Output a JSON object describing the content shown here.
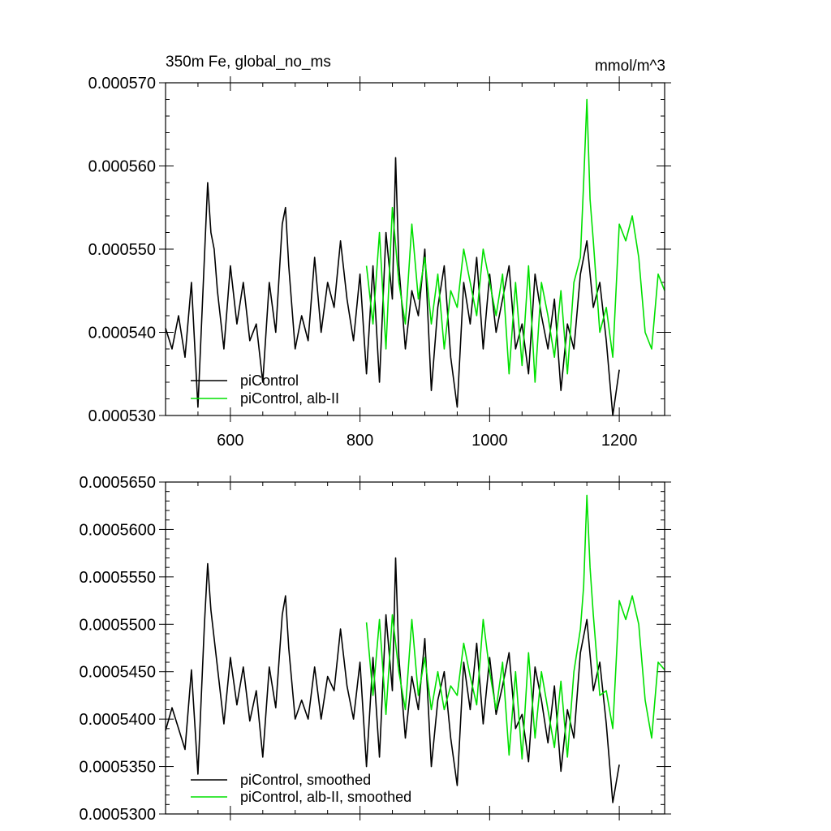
{
  "chart_data": [
    {
      "type": "line",
      "title": "350m Fe, global_no_ms",
      "units": "mmol/m^3",
      "xlabel": "",
      "ylabel": "",
      "xlim": [
        500,
        1270
      ],
      "ylim": [
        0.00053,
        0.00057
      ],
      "xticks": [
        600,
        800,
        1000,
        1200
      ],
      "xtick_labels": [
        "600",
        "800",
        "1000",
        "1200"
      ],
      "yticks": [
        0.00053,
        0.00054,
        0.00055,
        0.00056,
        0.00057
      ],
      "ytick_labels": [
        "0.000530",
        "0.000540",
        "0.000550",
        "0.000560",
        "0.000570"
      ],
      "legend": {
        "position": "bottom-left"
      },
      "series": [
        {
          "name": "piControl",
          "color": "#000000",
          "x": [
            500,
            510,
            520,
            530,
            540,
            550,
            560,
            565,
            570,
            575,
            580,
            590,
            600,
            610,
            620,
            630,
            640,
            650,
            660,
            670,
            680,
            685,
            690,
            700,
            710,
            720,
            730,
            740,
            750,
            760,
            770,
            780,
            790,
            800,
            810,
            820,
            830,
            840,
            850,
            855,
            860,
            870,
            880,
            890,
            900,
            910,
            920,
            930,
            940,
            950,
            960,
            970,
            980,
            990,
            1000,
            1010,
            1020,
            1030,
            1040,
            1050,
            1060,
            1070,
            1080,
            1090,
            1100,
            1110,
            1120,
            1130,
            1140,
            1150,
            1160,
            1170,
            1180,
            1190,
            1200
          ],
          "y": [
            0.0005405,
            0.000538,
            0.000542,
            0.000537,
            0.000546,
            0.000531,
            0.000549,
            0.000558,
            0.000552,
            0.00055,
            0.000545,
            0.000538,
            0.000548,
            0.000541,
            0.000546,
            0.000539,
            0.000541,
            0.000534,
            0.000546,
            0.00054,
            0.000553,
            0.000555,
            0.000548,
            0.000538,
            0.000542,
            0.000539,
            0.000549,
            0.00054,
            0.000546,
            0.000543,
            0.000551,
            0.000544,
            0.000539,
            0.000547,
            0.000535,
            0.000548,
            0.000534,
            0.000552,
            0.000544,
            0.000561,
            0.000548,
            0.000538,
            0.000545,
            0.000542,
            0.00055,
            0.000533,
            0.000543,
            0.000548,
            0.000537,
            0.000531,
            0.000546,
            0.000541,
            0.000549,
            0.000538,
            0.000547,
            0.00054,
            0.000544,
            0.000548,
            0.000538,
            0.000541,
            0.000535,
            0.000547,
            0.000542,
            0.000538,
            0.000544,
            0.000533,
            0.000541,
            0.000538,
            0.000547,
            0.000551,
            0.000543,
            0.000546,
            0.000539,
            0.00053,
            0.0005355
          ]
        },
        {
          "name": "piControl, alb-II",
          "color": "#00e000",
          "x": [
            810,
            820,
            830,
            840,
            850,
            860,
            870,
            880,
            890,
            900,
            910,
            920,
            930,
            940,
            950,
            960,
            970,
            980,
            990,
            1000,
            1010,
            1020,
            1030,
            1040,
            1050,
            1060,
            1070,
            1080,
            1090,
            1100,
            1110,
            1120,
            1130,
            1140,
            1145,
            1150,
            1155,
            1160,
            1170,
            1180,
            1190,
            1200,
            1210,
            1220,
            1230,
            1240,
            1250,
            1260,
            1270
          ],
          "y": [
            0.000548,
            0.000541,
            0.000552,
            0.000538,
            0.000555,
            0.000546,
            0.000541,
            0.000553,
            0.000544,
            0.000549,
            0.000541,
            0.000547,
            0.000538,
            0.000545,
            0.000543,
            0.00055,
            0.000546,
            0.000542,
            0.00055,
            0.000546,
            0.000542,
            0.000547,
            0.000535,
            0.000546,
            0.000536,
            0.000548,
            0.000534,
            0.000546,
            0.000542,
            0.000537,
            0.000545,
            0.000535,
            0.000546,
            0.000549,
            0.000558,
            0.000568,
            0.000556,
            0.000551,
            0.00054,
            0.000543,
            0.000537,
            0.000553,
            0.000551,
            0.000554,
            0.000549,
            0.00054,
            0.000538,
            0.000547,
            0.000545
          ]
        }
      ]
    },
    {
      "type": "line",
      "title": "",
      "xlabel": "",
      "ylabel": "",
      "xlim": [
        500,
        1270
      ],
      "ylim": [
        0.00053,
        0.000565
      ],
      "xticks": [
        600,
        800,
        1000,
        1200
      ],
      "yticks": [
        0.00053,
        0.000535,
        0.00054,
        0.000545,
        0.00055,
        0.000555,
        0.00056,
        0.000565
      ],
      "ytick_labels": [
        "0.0005300",
        "0.0005350",
        "0.0005400",
        "0.0005450",
        "0.0005500",
        "0.0005550",
        "0.0005600",
        "0.0005650"
      ],
      "legend": {
        "position": "bottom-left"
      },
      "series": [
        {
          "name": "piControl, smoothed",
          "color": "#000000",
          "x": [
            500,
            510,
            520,
            530,
            540,
            550,
            560,
            565,
            570,
            580,
            590,
            600,
            610,
            620,
            630,
            640,
            650,
            660,
            670,
            680,
            685,
            690,
            700,
            710,
            720,
            730,
            740,
            750,
            760,
            770,
            780,
            790,
            800,
            810,
            820,
            830,
            840,
            850,
            855,
            860,
            870,
            880,
            890,
            900,
            910,
            920,
            930,
            940,
            950,
            960,
            970,
            980,
            990,
            1000,
            1010,
            1020,
            1030,
            1040,
            1050,
            1060,
            1070,
            1080,
            1090,
            1100,
            1110,
            1120,
            1130,
            1140,
            1150,
            1160,
            1170,
            1180,
            1190,
            1200
          ],
          "y": [
            0.0005388,
            0.0005412,
            0.000539,
            0.0005368,
            0.0005452,
            0.0005342,
            0.00055,
            0.0005564,
            0.0005515,
            0.0005455,
            0.0005395,
            0.0005465,
            0.0005415,
            0.0005455,
            0.0005398,
            0.000543,
            0.000536,
            0.0005455,
            0.0005412,
            0.000551,
            0.000553,
            0.0005475,
            0.00054,
            0.000542,
            0.00054,
            0.0005455,
            0.00054,
            0.0005445,
            0.000543,
            0.0005495,
            0.0005435,
            0.00054,
            0.000546,
            0.000535,
            0.0005465,
            0.000536,
            0.000551,
            0.000543,
            0.000557,
            0.0005465,
            0.000538,
            0.0005445,
            0.000541,
            0.0005485,
            0.000535,
            0.000542,
            0.000545,
            0.000538,
            0.000533,
            0.000546,
            0.000541,
            0.000548,
            0.0005395,
            0.0005465,
            0.0005405,
            0.0005435,
            0.000547,
            0.000539,
            0.0005405,
            0.0005355,
            0.0005455,
            0.000542,
            0.0005375,
            0.0005435,
            0.0005345,
            0.000541,
            0.000538,
            0.000547,
            0.0005505,
            0.000543,
            0.000546,
            0.0005395,
            0.0005312,
            0.0005352
          ]
        },
        {
          "name": "piControl, alb-II, smoothed",
          "color": "#00e000",
          "x": [
            810,
            820,
            830,
            840,
            850,
            860,
            870,
            880,
            890,
            900,
            910,
            920,
            930,
            940,
            950,
            960,
            970,
            980,
            990,
            1000,
            1010,
            1020,
            1030,
            1040,
            1050,
            1060,
            1070,
            1080,
            1090,
            1100,
            1110,
            1120,
            1130,
            1140,
            1145,
            1150,
            1155,
            1160,
            1170,
            1180,
            1190,
            1200,
            1210,
            1220,
            1230,
            1240,
            1250,
            1260,
            1270
          ],
          "y": [
            0.0005502,
            0.0005425,
            0.0005505,
            0.0005405,
            0.000551,
            0.000545,
            0.000541,
            0.0005505,
            0.0005425,
            0.0005465,
            0.000541,
            0.000545,
            0.000541,
            0.0005435,
            0.0005425,
            0.000548,
            0.0005445,
            0.0005415,
            0.0005505,
            0.000545,
            0.000541,
            0.000546,
            0.0005362,
            0.000545,
            0.0005358,
            0.000547,
            0.000538,
            0.000545,
            0.000541,
            0.000537,
            0.000544,
            0.000536,
            0.000545,
            0.0005495,
            0.000554,
            0.0005636,
            0.000556,
            0.000551,
            0.0005425,
            0.000543,
            0.000539,
            0.0005525,
            0.0005505,
            0.000553,
            0.00055,
            0.000542,
            0.000538,
            0.000546,
            0.0005452
          ]
        }
      ]
    }
  ]
}
